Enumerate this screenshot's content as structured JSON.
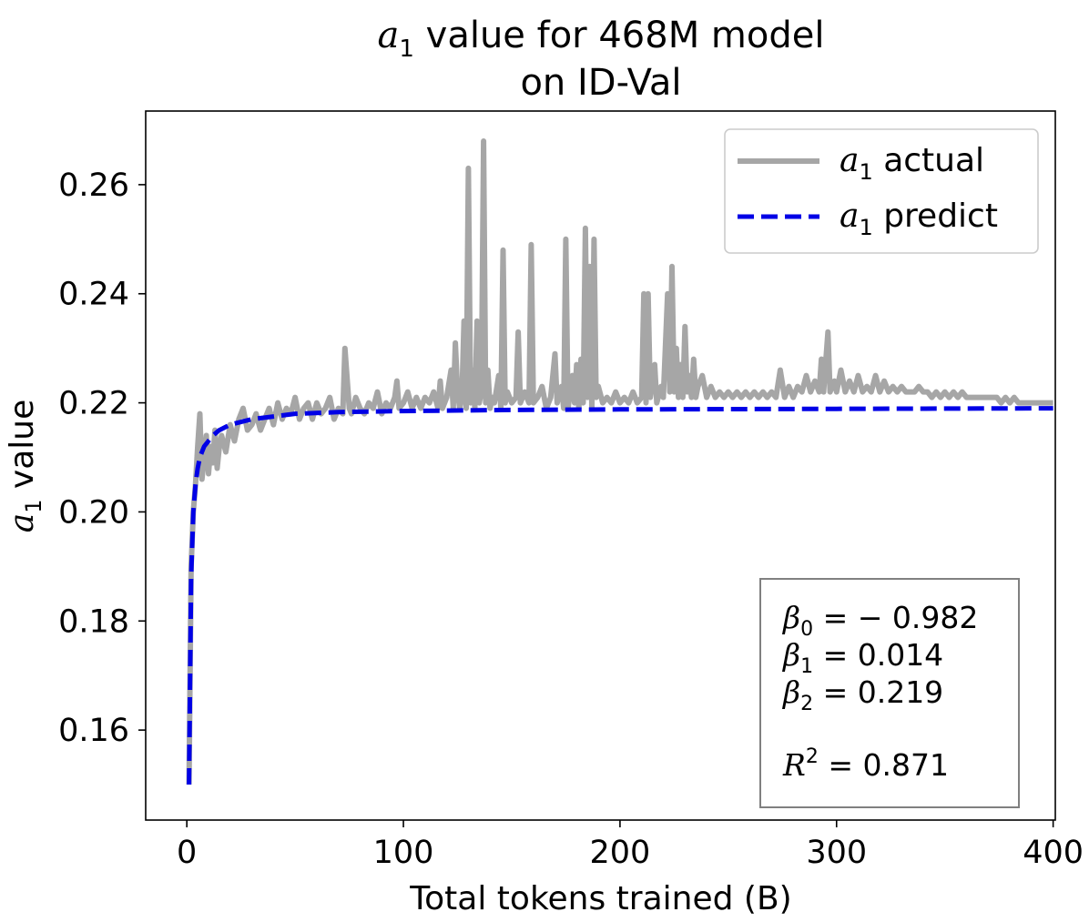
{
  "chart_data": {
    "type": "line",
    "title_line1": {
      "var": "a",
      "sub": "1",
      "rest": " value for 468M model"
    },
    "title_line2": "on ID-Val",
    "xlabel": "Total tokens trained (B)",
    "ylabel": {
      "var": "a",
      "sub": "1",
      "rest": " value"
    },
    "xlim": [
      -19,
      401
    ],
    "ylim": [
      0.1435,
      0.2735
    ],
    "xticks": [
      0,
      100,
      200,
      300,
      400
    ],
    "xtick_labels": [
      "0",
      "100",
      "200",
      "300",
      "400"
    ],
    "yticks": [
      0.16,
      0.18,
      0.2,
      0.22,
      0.24,
      0.26
    ],
    "ytick_labels": [
      "0.16",
      "0.18",
      "0.20",
      "0.22",
      "0.24",
      "0.26"
    ],
    "grid": false,
    "legend_position": "top-right",
    "series": [
      {
        "name": {
          "var": "a",
          "sub": "1",
          "rest": " actual"
        },
        "color": "#a6a6a6",
        "style": "solid",
        "points": [
          [
            1,
            0.15
          ],
          [
            2,
            0.19
          ],
          [
            3,
            0.2
          ],
          [
            4,
            0.205
          ],
          [
            5,
            0.212
          ],
          [
            6,
            0.218
          ],
          [
            7,
            0.206
          ],
          [
            8,
            0.21
          ],
          [
            9,
            0.214
          ],
          [
            10,
            0.207
          ],
          [
            11,
            0.212
          ],
          [
            12,
            0.209
          ],
          [
            13,
            0.215
          ],
          [
            14,
            0.208
          ],
          [
            15,
            0.212
          ],
          [
            16,
            0.214
          ],
          [
            18,
            0.211
          ],
          [
            20,
            0.216
          ],
          [
            22,
            0.213
          ],
          [
            24,
            0.217
          ],
          [
            26,
            0.219
          ],
          [
            28,
            0.215
          ],
          [
            30,
            0.216
          ],
          [
            32,
            0.218
          ],
          [
            34,
            0.215
          ],
          [
            36,
            0.217
          ],
          [
            38,
            0.219
          ],
          [
            40,
            0.216
          ],
          [
            42,
            0.22
          ],
          [
            44,
            0.217
          ],
          [
            46,
            0.219
          ],
          [
            48,
            0.218
          ],
          [
            50,
            0.221
          ],
          [
            52,
            0.217
          ],
          [
            54,
            0.219
          ],
          [
            56,
            0.22
          ],
          [
            58,
            0.217
          ],
          [
            60,
            0.22
          ],
          [
            62,
            0.218
          ],
          [
            64,
            0.219
          ],
          [
            66,
            0.221
          ],
          [
            68,
            0.217
          ],
          [
            70,
            0.219
          ],
          [
            72,
            0.218
          ],
          [
            73,
            0.23
          ],
          [
            75,
            0.219
          ],
          [
            76,
            0.218
          ],
          [
            78,
            0.221
          ],
          [
            80,
            0.219
          ],
          [
            82,
            0.218
          ],
          [
            84,
            0.22
          ],
          [
            86,
            0.219
          ],
          [
            88,
            0.222
          ],
          [
            90,
            0.218
          ],
          [
            92,
            0.22
          ],
          [
            94,
            0.219
          ],
          [
            96,
            0.221
          ],
          [
            97,
            0.224
          ],
          [
            98,
            0.219
          ],
          [
            100,
            0.22
          ],
          [
            102,
            0.222
          ],
          [
            104,
            0.219
          ],
          [
            106,
            0.221
          ],
          [
            108,
            0.219
          ],
          [
            110,
            0.221
          ],
          [
            112,
            0.22
          ],
          [
            114,
            0.222
          ],
          [
            116,
            0.219
          ],
          [
            117,
            0.224
          ],
          [
            118,
            0.219
          ],
          [
            120,
            0.221
          ],
          [
            122,
            0.226
          ],
          [
            123,
            0.219
          ],
          [
            124,
            0.231
          ],
          [
            125,
            0.222
          ],
          [
            126,
            0.219
          ],
          [
            127,
            0.221
          ],
          [
            128,
            0.235
          ],
          [
            129,
            0.219
          ],
          [
            130,
            0.263
          ],
          [
            131,
            0.22
          ],
          [
            132,
            0.226
          ],
          [
            133,
            0.219
          ],
          [
            134,
            0.235
          ],
          [
            135,
            0.22
          ],
          [
            136,
            0.222
          ],
          [
            137,
            0.268
          ],
          [
            138,
            0.22
          ],
          [
            139,
            0.226
          ],
          [
            140,
            0.219
          ],
          [
            141,
            0.221
          ],
          [
            142,
            0.22
          ],
          [
            144,
            0.225
          ],
          [
            145,
            0.219
          ],
          [
            146,
            0.248
          ],
          [
            147,
            0.22
          ],
          [
            148,
            0.222
          ],
          [
            150,
            0.22
          ],
          [
            152,
            0.221
          ],
          [
            153,
            0.233
          ],
          [
            154,
            0.22
          ],
          [
            156,
            0.222
          ],
          [
            158,
            0.22
          ],
          [
            159,
            0.249
          ],
          [
            160,
            0.22
          ],
          [
            162,
            0.221
          ],
          [
            164,
            0.223
          ],
          [
            166,
            0.219
          ],
          [
            168,
            0.221
          ],
          [
            170,
            0.229
          ],
          [
            171,
            0.22
          ],
          [
            173,
            0.223
          ],
          [
            174,
            0.219
          ],
          [
            175,
            0.25
          ],
          [
            176,
            0.219
          ],
          [
            178,
            0.225
          ],
          [
            179,
            0.22
          ],
          [
            180,
            0.227
          ],
          [
            181,
            0.219
          ],
          [
            182,
            0.228
          ],
          [
            183,
            0.22
          ],
          [
            184,
            0.252
          ],
          [
            185,
            0.221
          ],
          [
            186,
            0.245
          ],
          [
            187,
            0.219
          ],
          [
            188,
            0.25
          ],
          [
            189,
            0.221
          ],
          [
            190,
            0.223
          ],
          [
            192,
            0.22
          ],
          [
            194,
            0.221
          ],
          [
            196,
            0.22
          ],
          [
            198,
            0.222
          ],
          [
            200,
            0.22
          ],
          [
            202,
            0.221
          ],
          [
            204,
            0.22
          ],
          [
            206,
            0.222
          ],
          [
            208,
            0.22
          ],
          [
            210,
            0.221
          ],
          [
            211,
            0.24
          ],
          [
            212,
            0.22
          ],
          [
            213,
            0.24
          ],
          [
            214,
            0.221
          ],
          [
            216,
            0.227
          ],
          [
            217,
            0.22
          ],
          [
            219,
            0.223
          ],
          [
            220,
            0.221
          ],
          [
            222,
            0.24
          ],
          [
            223,
            0.222
          ],
          [
            224,
            0.245
          ],
          [
            225,
            0.222
          ],
          [
            226,
            0.23
          ],
          [
            227,
            0.221
          ],
          [
            228,
            0.227
          ],
          [
            229,
            0.221
          ],
          [
            230,
            0.234
          ],
          [
            231,
            0.222
          ],
          [
            232,
            0.225
          ],
          [
            233,
            0.221
          ],
          [
            234,
            0.228
          ],
          [
            235,
            0.221
          ],
          [
            236,
            0.223
          ],
          [
            238,
            0.225
          ],
          [
            240,
            0.221
          ],
          [
            242,
            0.223
          ],
          [
            244,
            0.221
          ],
          [
            246,
            0.222
          ],
          [
            248,
            0.221
          ],
          [
            250,
            0.222
          ],
          [
            252,
            0.221
          ],
          [
            254,
            0.222
          ],
          [
            256,
            0.221
          ],
          [
            258,
            0.222
          ],
          [
            260,
            0.221
          ],
          [
            262,
            0.222
          ],
          [
            264,
            0.221
          ],
          [
            266,
            0.222
          ],
          [
            268,
            0.221
          ],
          [
            270,
            0.222
          ],
          [
            272,
            0.221
          ],
          [
            274,
            0.226
          ],
          [
            276,
            0.221
          ],
          [
            278,
            0.223
          ],
          [
            280,
            0.221
          ],
          [
            282,
            0.223
          ],
          [
            284,
            0.222
          ],
          [
            286,
            0.225
          ],
          [
            288,
            0.222
          ],
          [
            290,
            0.224
          ],
          [
            292,
            0.222
          ],
          [
            293,
            0.228
          ],
          [
            294,
            0.222
          ],
          [
            296,
            0.233
          ],
          [
            297,
            0.222
          ],
          [
            299,
            0.224
          ],
          [
            300,
            0.222
          ],
          [
            302,
            0.226
          ],
          [
            304,
            0.222
          ],
          [
            306,
            0.224
          ],
          [
            308,
            0.222
          ],
          [
            310,
            0.225
          ],
          [
            312,
            0.222
          ],
          [
            314,
            0.223
          ],
          [
            316,
            0.222
          ],
          [
            318,
            0.225
          ],
          [
            320,
            0.222
          ],
          [
            322,
            0.224
          ],
          [
            324,
            0.222
          ],
          [
            326,
            0.223
          ],
          [
            328,
            0.222
          ],
          [
            330,
            0.223
          ],
          [
            332,
            0.222
          ],
          [
            334,
            0.222
          ],
          [
            336,
            0.222
          ],
          [
            338,
            0.223
          ],
          [
            340,
            0.222
          ],
          [
            342,
            0.222
          ],
          [
            344,
            0.221
          ],
          [
            346,
            0.222
          ],
          [
            348,
            0.221
          ],
          [
            350,
            0.222
          ],
          [
            352,
            0.221
          ],
          [
            354,
            0.222
          ],
          [
            356,
            0.221
          ],
          [
            358,
            0.222
          ],
          [
            360,
            0.221
          ],
          [
            362,
            0.221
          ],
          [
            364,
            0.221
          ],
          [
            366,
            0.221
          ],
          [
            368,
            0.221
          ],
          [
            370,
            0.221
          ],
          [
            372,
            0.221
          ],
          [
            374,
            0.221
          ],
          [
            376,
            0.22
          ],
          [
            378,
            0.221
          ],
          [
            380,
            0.22
          ],
          [
            382,
            0.221
          ],
          [
            384,
            0.22
          ],
          [
            386,
            0.22
          ],
          [
            388,
            0.22
          ],
          [
            390,
            0.22
          ],
          [
            392,
            0.22
          ],
          [
            394,
            0.22
          ],
          [
            396,
            0.22
          ],
          [
            398,
            0.22
          ],
          [
            400,
            0.22
          ]
        ]
      },
      {
        "name": {
          "var": "a",
          "sub": "1",
          "rest": " predict"
        },
        "color": "#0000e6",
        "style": "dashed",
        "x_start": 1,
        "x_end": 400,
        "points": [
          [
            1,
            0.15
          ],
          [
            2,
            0.188
          ],
          [
            3,
            0.2
          ],
          [
            4,
            0.205
          ],
          [
            5,
            0.208
          ],
          [
            6,
            0.21
          ],
          [
            7,
            0.211
          ],
          [
            8,
            0.212
          ],
          [
            10,
            0.213
          ],
          [
            12,
            0.214
          ],
          [
            15,
            0.215
          ],
          [
            20,
            0.216
          ],
          [
            25,
            0.2165
          ],
          [
            30,
            0.217
          ],
          [
            40,
            0.2175
          ],
          [
            50,
            0.218
          ],
          [
            70,
            0.2183
          ],
          [
            100,
            0.2185
          ],
          [
            150,
            0.2187
          ],
          [
            200,
            0.2188
          ],
          [
            300,
            0.2189
          ],
          [
            400,
            0.219
          ]
        ]
      }
    ],
    "fit_params": [
      {
        "sym": "β",
        "sub": "0",
        "val": " = − 0.982"
      },
      {
        "sym": "β",
        "sub": "1",
        "val": " = 0.014"
      },
      {
        "sym": "β",
        "sub": "2",
        "val": " = 0.219"
      }
    ],
    "r2": {
      "sym": "R",
      "sup": "2",
      "val": " = 0.871"
    }
  }
}
